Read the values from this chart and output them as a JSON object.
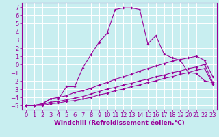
{
  "background_color": "#c8eef0",
  "grid_color": "#ffffff",
  "line_color": "#990099",
  "xlabel": "Windchill (Refroidissement éolien,°C)",
  "xlabel_fontsize": 6.5,
  "tick_fontsize": 6,
  "xlim": [
    -0.5,
    23.5
  ],
  "ylim": [
    -5.5,
    7.5
  ],
  "xticks": [
    0,
    1,
    2,
    3,
    4,
    5,
    6,
    7,
    8,
    9,
    10,
    11,
    12,
    13,
    14,
    15,
    16,
    17,
    18,
    19,
    20,
    21,
    22,
    23
  ],
  "yticks": [
    -5,
    -4,
    -3,
    -2,
    -1,
    0,
    1,
    2,
    3,
    4,
    5,
    6,
    7
  ],
  "line1_x": [
    0,
    1,
    2,
    3,
    4,
    5,
    6,
    7,
    8,
    9,
    10,
    11,
    12,
    13,
    14,
    15,
    16,
    17,
    18,
    19,
    20,
    21,
    22,
    23
  ],
  "line1_y": [
    -5,
    -5,
    -4.8,
    -4.2,
    -4.2,
    -2.7,
    -2.7,
    -0.4,
    1.2,
    2.7,
    3.8,
    6.7,
    6.9,
    6.9,
    6.7,
    2.5,
    3.5,
    1.25,
    0.8,
    0.5,
    -1.0,
    -1.1,
    -2.0,
    -2.2
  ],
  "line2_x": [
    0,
    1,
    2,
    3,
    4,
    5,
    6,
    7,
    8,
    9,
    10,
    11,
    12,
    13,
    14,
    15,
    16,
    17,
    18,
    19,
    20,
    21,
    22,
    23
  ],
  "line2_y": [
    -5,
    -5,
    -4.8,
    -4.2,
    -4.0,
    -3.8,
    -3.4,
    -3.2,
    -2.9,
    -2.5,
    -2.2,
    -1.8,
    -1.5,
    -1.2,
    -0.8,
    -0.5,
    -0.2,
    0.1,
    0.4,
    0.6,
    0.8,
    1.0,
    0.5,
    -1.5
  ],
  "line3_x": [
    0,
    1,
    2,
    3,
    4,
    5,
    6,
    7,
    8,
    9,
    10,
    11,
    12,
    13,
    14,
    15,
    16,
    17,
    18,
    19,
    20,
    21,
    22,
    23
  ],
  "line3_y": [
    -5,
    -5,
    -4.9,
    -4.6,
    -4.5,
    -4.3,
    -4.1,
    -3.9,
    -3.6,
    -3.3,
    -3.0,
    -2.8,
    -2.5,
    -2.3,
    -2.0,
    -1.8,
    -1.5,
    -1.3,
    -1.0,
    -0.8,
    -0.5,
    -0.3,
    -0.0,
    -2.2
  ],
  "line4_x": [
    0,
    1,
    2,
    3,
    4,
    5,
    6,
    7,
    8,
    9,
    10,
    11,
    12,
    13,
    14,
    15,
    16,
    17,
    18,
    19,
    20,
    21,
    22,
    23
  ],
  "line4_y": [
    -5,
    -5,
    -5.0,
    -4.8,
    -4.7,
    -4.5,
    -4.4,
    -4.2,
    -4.0,
    -3.7,
    -3.5,
    -3.2,
    -3.0,
    -2.7,
    -2.5,
    -2.2,
    -2.0,
    -1.7,
    -1.5,
    -1.2,
    -1.0,
    -0.7,
    -0.5,
    -2.4
  ]
}
